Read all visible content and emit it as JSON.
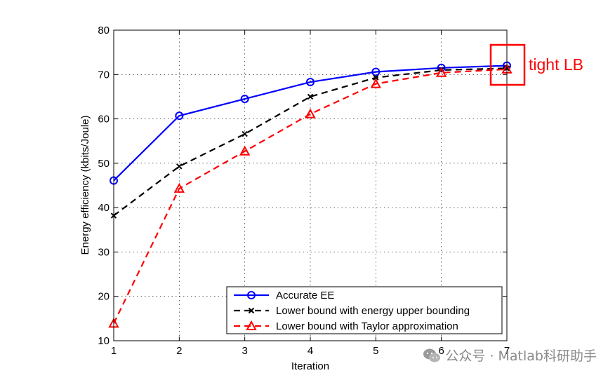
{
  "chart_data": {
    "type": "line",
    "title": "",
    "xlabel": "Iteration",
    "ylabel": "Energy efficiency (kbits/Joule)",
    "xlim": [
      1,
      7
    ],
    "ylim": [
      10,
      80
    ],
    "x": [
      1,
      2,
      3,
      4,
      5,
      6,
      7
    ],
    "xticks": [
      "1",
      "2",
      "3",
      "4",
      "5",
      "6",
      "7"
    ],
    "yticks": [
      "10",
      "20",
      "30",
      "40",
      "50",
      "60",
      "70",
      "80"
    ],
    "grid": true,
    "legend_position": "bottom-right",
    "series": [
      {
        "name": "Accurate EE",
        "values": [
          46.1,
          60.7,
          64.5,
          68.3,
          70.6,
          71.5,
          72.0
        ],
        "color": "#0000ff",
        "dash": "solid",
        "marker": "circle"
      },
      {
        "name": "Lower bound with energy upper bounding",
        "values": [
          38.2,
          49.3,
          56.6,
          65.0,
          69.3,
          71.0,
          71.4
        ],
        "color": "#000000",
        "dash": "dashed",
        "marker": "x"
      },
      {
        "name": "Lower bound with Taylor approximation",
        "values": [
          13.9,
          44.3,
          52.7,
          61.1,
          67.9,
          70.4,
          71.2
        ],
        "color": "#ff0000",
        "dash": "dashed",
        "marker": "triangle"
      }
    ],
    "annotation": {
      "text": "tight LB",
      "color": "#ff0000",
      "x": 7,
      "y": 72
    }
  },
  "watermark": {
    "text": "公众号 · Matlab科研助手"
  }
}
